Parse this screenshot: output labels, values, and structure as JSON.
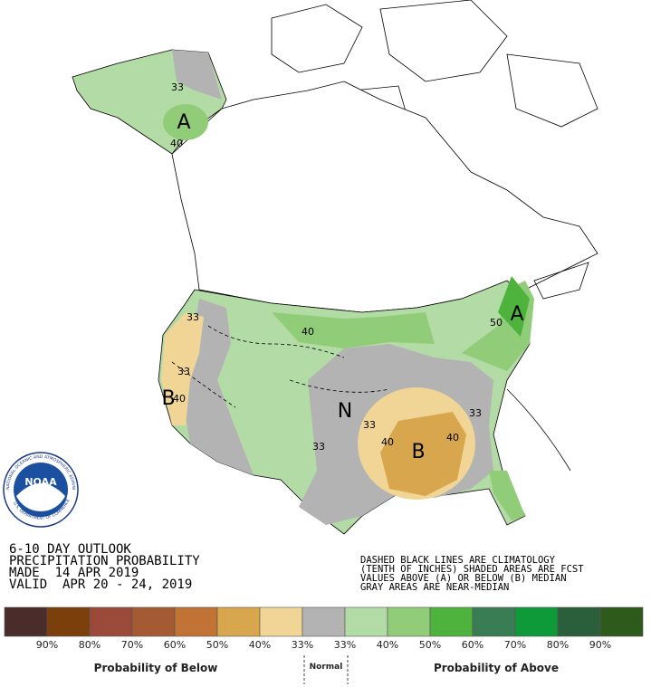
{
  "logo": {
    "name": "NOAA",
    "ring_top": "NATIONAL OCEANIC AND ATMOSPHERIC ADMINISTRATION",
    "ring_bottom": "U.S. DEPARTMENT OF COMMERCE"
  },
  "outlook": {
    "title": "6-10 DAY OUTLOOK",
    "subtitle": "PRECIPITATION PROBABILITY",
    "made": "MADE  14 APR 2019",
    "valid": "VALID  APR 20 - 24, 2019"
  },
  "notes": [
    "DASHED BLACK LINES ARE CLIMATOLOGY",
    "(TENTH OF INCHES) SHADED AREAS ARE FCST",
    "VALUES ABOVE (A) OR BELOW (B) MEDIAN",
    "GRAY AREAS ARE NEAR-MEDIAN"
  ],
  "map_labels": [
    "A",
    "A",
    "B",
    "B",
    "N"
  ],
  "contour_labels": [
    "33",
    "40",
    "33",
    "40",
    "33",
    "40",
    "33",
    "40",
    "40",
    "33",
    "33",
    "50"
  ],
  "legend": {
    "labels": [
      "90%",
      "80%",
      "70%",
      "60%",
      "50%",
      "40%",
      "33%",
      "33%",
      "40%",
      "50%",
      "60%",
      "70%",
      "80%",
      "90%"
    ],
    "colors": [
      "#4a2c2a",
      "#7b3f0c",
      "#9b4a3a",
      "#a45a33",
      "#c07334",
      "#d8a64d",
      "#f0d597",
      "#b3b3b3",
      "#b3dba5",
      "#91cd78",
      "#4db33d",
      "#3a7d55",
      "#0f9a3a",
      "#2b5e3a",
      "#2e5a1c"
    ],
    "below": "Probability of Below",
    "normal": "Normal",
    "above": "Probability of Above"
  }
}
